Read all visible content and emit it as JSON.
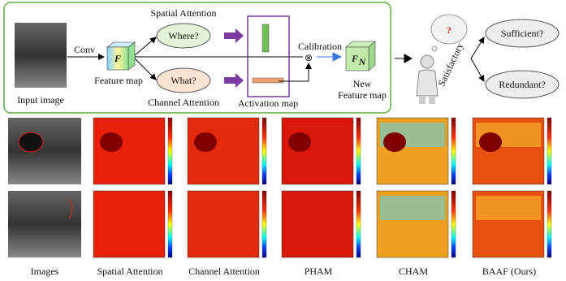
{
  "pipeline": {
    "input_label": "Input image",
    "conv_label": "Conv",
    "feature_symbol": "F",
    "feature_label": "Feature map",
    "spatial_title": "Spatial Attention",
    "spatial_question": "Where?",
    "channel_question": "What?",
    "channel_title": "Channel Attention",
    "activation_label": "Activation map",
    "calibration_label": "Calibration",
    "multiply_symbol": "⊗",
    "new_feature_symbol": "F",
    "new_feature_subscript": "N",
    "new_feature_label": [
      "New",
      "Feature map"
    ]
  },
  "decision": {
    "thinker_label": "Satisfactory",
    "question_mark": "?",
    "outcomes": [
      "Sufficient?",
      "Redundant?"
    ]
  },
  "comparison": {
    "columns": [
      "Images",
      "Spatial Attention",
      "Channel Attention",
      "PHAM",
      "CHAM",
      "BAAF (Ours)"
    ]
  }
}
